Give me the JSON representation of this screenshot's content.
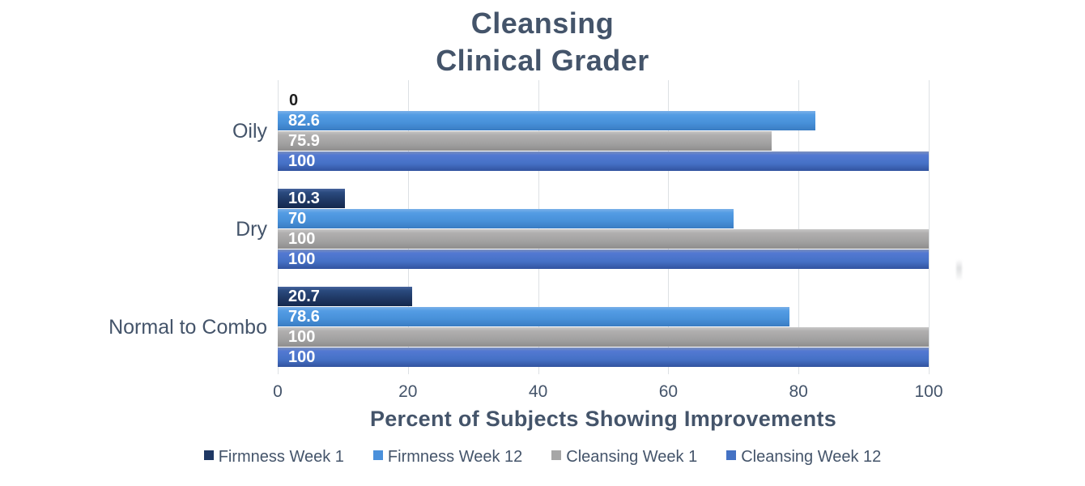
{
  "title": {
    "line1": "Cleansing",
    "line2": "Clinical Grader"
  },
  "chart_data": {
    "type": "bar",
    "orientation": "horizontal",
    "title": "Cleansing Clinical Grader",
    "categories": [
      "Oily",
      "Dry",
      "Normal to Combo"
    ],
    "series": [
      {
        "name": "Firmness Week 1",
        "color": "#1F3864",
        "values": [
          0,
          10.3,
          20.7
        ]
      },
      {
        "name": "Firmness Week 12",
        "color": "#4A90DB",
        "values": [
          82.6,
          70,
          78.6
        ]
      },
      {
        "name": "Cleansing Week 1",
        "color": "#A6A6A6",
        "values": [
          75.9,
          100,
          100
        ]
      },
      {
        "name": "Cleansing Week 12",
        "color": "#4472C4",
        "values": [
          100,
          100,
          100
        ]
      }
    ],
    "xlabel": "Percent of Subjects Showing Improvements",
    "x_ticks": [
      0,
      20,
      40,
      60,
      80,
      100
    ],
    "xlim": [
      0,
      100
    ],
    "grid": true,
    "legend_position": "bottom",
    "data_labels": "inside-base, zero values labeled outside in dark text"
  },
  "colors": {
    "text": "#44546A",
    "zero_label": "#1F1F1F",
    "gridline": "#DDE1E4",
    "background": "#FFFFFF"
  }
}
